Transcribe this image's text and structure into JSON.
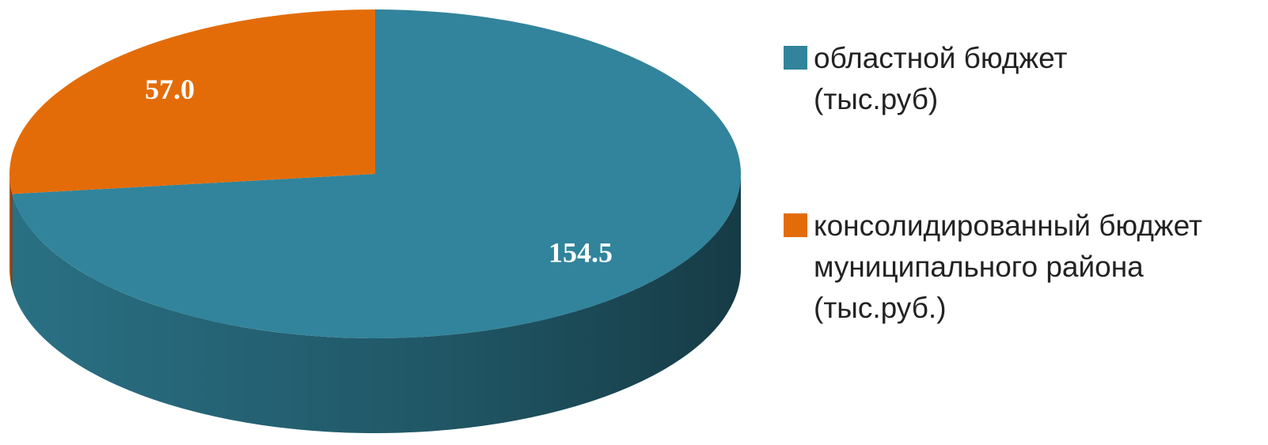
{
  "chart_data": {
    "type": "pie",
    "categories": [
      "областной бюджет (тыс.руб)",
      "консолидированный бюджет муниципального района (тыс.руб.)"
    ],
    "values": [
      154.5,
      57.0
    ],
    "value_labels": [
      "154.5",
      "57.0"
    ],
    "colors": [
      "#31849b",
      "#e36c09"
    ],
    "legend": "right"
  }
}
